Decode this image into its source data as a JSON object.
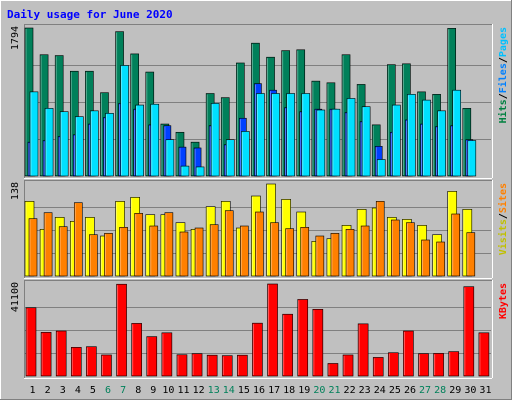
{
  "chart_data": {
    "title": "Daily usage for June 2020",
    "days": [
      "1",
      "2",
      "3",
      "4",
      "5",
      "6",
      "7",
      "8",
      "9",
      "10",
      "11",
      "12",
      "13",
      "14",
      "15",
      "16",
      "17",
      "18",
      "19",
      "20",
      "21",
      "22",
      "23",
      "24",
      "25",
      "26",
      "27",
      "28",
      "29",
      "30",
      "31"
    ],
    "weekend_days": [
      "6",
      "7",
      "13",
      "14",
      "20",
      "21",
      "27",
      "28"
    ],
    "panels": [
      {
        "type": "bar",
        "ymax_label": "1794",
        "ylim": [
          0,
          1794
        ],
        "legend": [
          {
            "label": "Hits",
            "color": "#008040"
          },
          {
            "label": "/",
            "color": "#000000"
          },
          {
            "label": "Files",
            "color": "#0080ff"
          },
          {
            "label": "/",
            "color": "#000000"
          },
          {
            "label": "Pages",
            "color": "#00c0ff"
          }
        ],
        "series": [
          {
            "name": "Hits",
            "color": "#00805a",
            "values": [
              1794,
              1470,
              1460,
              1270,
              1270,
              1010,
              1750,
              1480,
              1260,
              630,
              530,
              410,
              1000,
              950,
              1370,
              1610,
              1440,
              1520,
              1530,
              1150,
              1130,
              1470,
              1110,
              620,
              1350,
              1360,
              1020,
              990,
              1790,
              820,
              0
            ]
          },
          {
            "name": "Files",
            "color": "#0040ff",
            "values": [
              410,
              430,
              480,
              500,
              630,
              710,
              880,
              810,
              620,
              610,
              350,
              340,
              610,
              380,
              700,
              1120,
              1040,
              830,
              780,
              810,
              810,
              770,
              660,
              360,
              530,
              680,
              630,
              600,
              610,
              440,
              0
            ]
          },
          {
            "name": "Pages",
            "color": "#00e0ff",
            "values": [
              1020,
              820,
              780,
              720,
              790,
              760,
              1340,
              860,
              870,
              440,
              120,
              110,
              880,
              440,
              540,
              1000,
              1000,
              1000,
              1000,
              800,
              810,
              940,
              840,
              200,
              860,
              990,
              920,
              790,
              1040,
              430,
              0
            ]
          }
        ]
      },
      {
        "type": "bar",
        "ymax_label": "138",
        "ylim": [
          0,
          138
        ],
        "legend": [
          {
            "label": "Visits",
            "color": "#c0c000"
          },
          {
            "label": "/",
            "color": "#000000"
          },
          {
            "label": "Sites",
            "color": "#ff8000"
          }
        ],
        "series": [
          {
            "name": "Visits",
            "color": "#ffff00",
            "values": [
              112,
              70,
              88,
              82,
              88,
              60,
              112,
              118,
              92,
              92,
              80,
              70,
              104,
              112,
              72,
              120,
              138,
              115,
              96,
              52,
              56,
              76,
              100,
              102,
              88,
              85,
              76,
              62,
              127,
              100,
              0
            ]
          },
          {
            "name": "Sites",
            "color": "#ff8000",
            "values": [
              86,
              95,
              74,
              110,
              62,
              64,
              73,
              94,
              75,
              95,
              66,
              72,
              77,
              98,
              75,
              96,
              80,
              71,
              73,
              60,
              64,
              70,
              75,
              112,
              84,
              80,
              54,
              51,
              93,
              65,
              0
            ]
          }
        ]
      },
      {
        "type": "bar",
        "ymax_label": "41100",
        "ylim": [
          0,
          41100
        ],
        "legend": [
          {
            "label": "KBytes",
            "color": "#ff0000"
          }
        ],
        "series": [
          {
            "name": "KBytes",
            "color": "#ff0000",
            "values": [
              30500,
              19500,
              20100,
              12800,
              13100,
              9400,
              41000,
              23500,
              17600,
              19300,
              9500,
              10000,
              9300,
              9100,
              9300,
              23600,
              41100,
              27600,
              34200,
              29800,
              5600,
              9400,
              23300,
              8300,
              10400,
              20100,
              10000,
              10100,
              10900,
              39900,
              19300
            ]
          }
        ]
      }
    ]
  }
}
